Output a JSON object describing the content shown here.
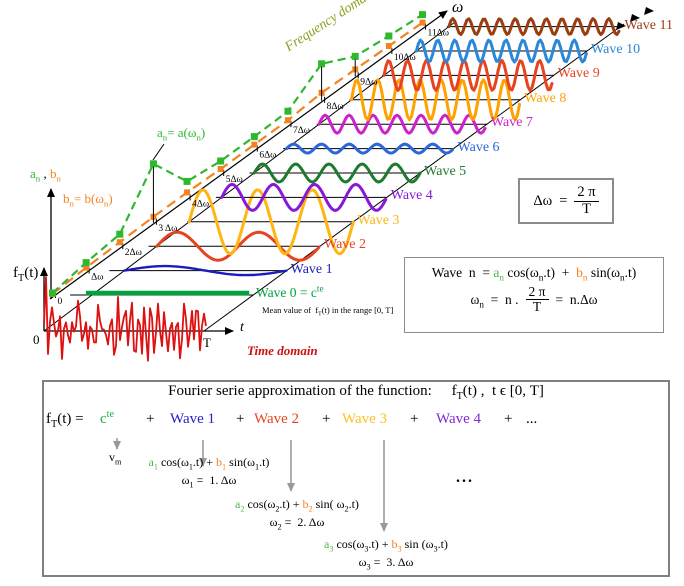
{
  "colors": {
    "axis": "#000000",
    "border_gray": "#8c8c8c",
    "arrow_gray": "#999999",
    "signal_red": "#dd1111",
    "time_label": "#cc1111",
    "freq_label": "#8f9e20",
    "an_green": "#2db82d",
    "bn_orange": "#f58220",
    "coef_green": "#4db84d",
    "wave0_green": "#00a33c"
  },
  "labels": {
    "frequency_domain": "Frequency domain",
    "time_domain": "Time domain",
    "omega_axis": "ω",
    "t_axis": "t",
    "T_end": "T",
    "origin_zero": "0",
    "f_axis": "f_{T}(t)",
    "an_curve": "a_{n}= a(ω_{n})",
    "bn_curve": "b_{n}= b(ω_{n})",
    "ab_axis_parts": [
      {
        "t": "a_{n}",
        "c": "#2db82d"
      },
      {
        "t": " , ",
        "c": "#000000"
      },
      {
        "t": "b_{n}",
        "c": "#f58220"
      }
    ]
  },
  "waves": [
    {
      "n": 0,
      "tick": "0",
      "label": "Wave 0 = c^{te}",
      "sub_label": "Mean value of  f_{T}(t) in the range [0, T]",
      "color": "#00a33c",
      "amplitude": 0,
      "cycles": 0
    },
    {
      "n": 1,
      "tick": "Δω",
      "label": "Wave 1",
      "color": "#1c1cbe",
      "amplitude": 4.5,
      "cycles": 1
    },
    {
      "n": 2,
      "tick": "2Δω",
      "label": "Wave 2",
      "color": "#e8431f",
      "amplitude": 14,
      "cycles": 2
    },
    {
      "n": 3,
      "tick": "3 Δω",
      "label": "Wave 3",
      "color": "#ffb612",
      "amplitude": 32,
      "cycles": 3
    },
    {
      "n": 4,
      "tick": "4Δω",
      "label": "Wave 4",
      "color": "#8819d6",
      "amplitude": 13,
      "cycles": 4
    },
    {
      "n": 5,
      "tick": "5Δω",
      "label": "Wave 5",
      "color": "#1e7a2e",
      "amplitude": 9,
      "cycles": 5
    },
    {
      "n": 6,
      "tick": "6Δω",
      "label": "Wave 6",
      "color": "#2d66d9",
      "amplitude": 4.5,
      "cycles": 6
    },
    {
      "n": 7,
      "tick": "7Δω",
      "label": "Wave 7",
      "color": "#cc22cc",
      "amplitude": 9,
      "cycles": 7
    },
    {
      "n": 8,
      "tick": "8Δω",
      "label": "Wave 8",
      "color": "#ffa100",
      "amplitude": 20,
      "cycles": 8
    },
    {
      "n": 9,
      "tick": "9Δω",
      "label": "Wave 9",
      "color": "#e8431f",
      "amplitude": 15,
      "cycles": 9
    },
    {
      "n": 10,
      "tick": "10Δω",
      "label": "Wave 10",
      "color": "#2a87d9",
      "amplitude": 11,
      "cycles": 10
    },
    {
      "n": 11,
      "tick": "11Δω",
      "label": "Wave 11",
      "color": "#993d12",
      "amplitude": 8,
      "cycles": 11
    }
  ],
  "an_offsets": [
    2,
    8,
    12,
    58,
    16,
    12,
    12,
    13,
    36,
    19,
    15,
    12
  ],
  "bn_offsets": [
    1,
    3,
    4,
    5,
    5,
    4,
    4,
    4,
    7,
    6,
    5,
    4
  ],
  "delta_box": {
    "lhs": "Δω",
    "eq": "=",
    "num": "2 π",
    "den": "T"
  },
  "wave_box": {
    "line1_parts": [
      {
        "t": "Wave  n  = ",
        "c": "#000000"
      },
      {
        "t": "a_{n}",
        "c": "#4db84d"
      },
      {
        "t": " cos(ω_{n}.t)  +  ",
        "c": "#000000"
      },
      {
        "t": "b_{n}",
        "c": "#f58220"
      },
      {
        "t": " sin(ω_{n}.t)",
        "c": "#000000"
      }
    ],
    "line2_pre": "ω_{n}  =  n .",
    "num": "2 π",
    "den": "T",
    "line2_post": "=  n.Δω"
  },
  "bottom_box": {
    "title": "Fourier serie approximation of the function:",
    "title_fn": "f_{T}(t) ,  t ϵ [0, T]",
    "terms": [
      {
        "text": "f_{T}(t) =",
        "color": "#000000"
      },
      {
        "text": "c^{te}",
        "color": "#1fae46"
      },
      {
        "text": "+",
        "color": "#000000"
      },
      {
        "text": "Wave 1",
        "color": "#2222cc"
      },
      {
        "text": "+",
        "color": "#000000"
      },
      {
        "text": "Wave 2",
        "color": "#e8431f"
      },
      {
        "text": "+",
        "color": "#000000"
      },
      {
        "text": "Wave 3",
        "color": "#ffc125"
      },
      {
        "text": "+",
        "color": "#000000"
      },
      {
        "text": "Wave 4",
        "color": "#8227d8"
      },
      {
        "text": "+",
        "color": "#000000"
      },
      {
        "text": "...",
        "color": "#000000"
      }
    ],
    "vm": "v_{m}",
    "expansions": [
      {
        "parts": [
          {
            "t": "a_{1}",
            "c": "#4db84d"
          },
          {
            "t": " cos(ω_{1}.t) + ",
            "c": "#000000"
          },
          {
            "t": "b_{1}",
            "c": "#f58220"
          },
          {
            "t": " sin(ω_{1}.t)",
            "c": "#000000"
          }
        ],
        "omega": "ω_{1} =  1. Δω"
      },
      {
        "parts": [
          {
            "t": "a_{2}",
            "c": "#4db84d"
          },
          {
            "t": " cos(ω_{2}.t) + ",
            "c": "#000000"
          },
          {
            "t": "b_{2}",
            "c": "#f58220"
          },
          {
            "t": " sin( ω_{2}.t)",
            "c": "#000000"
          }
        ],
        "omega": "ω_{2} =  2. Δω"
      },
      {
        "parts": [
          {
            "t": "a_{3}",
            "c": "#4db84d"
          },
          {
            "t": " cos(ω_{3}.t) + ",
            "c": "#000000"
          },
          {
            "t": "b_{3}",
            "c": "#f58220"
          },
          {
            "t": " sin (ω_{3}.t)",
            "c": "#000000"
          }
        ],
        "omega": "ω_{3} =  3. Δω"
      }
    ],
    "ellipsis": "..."
  }
}
